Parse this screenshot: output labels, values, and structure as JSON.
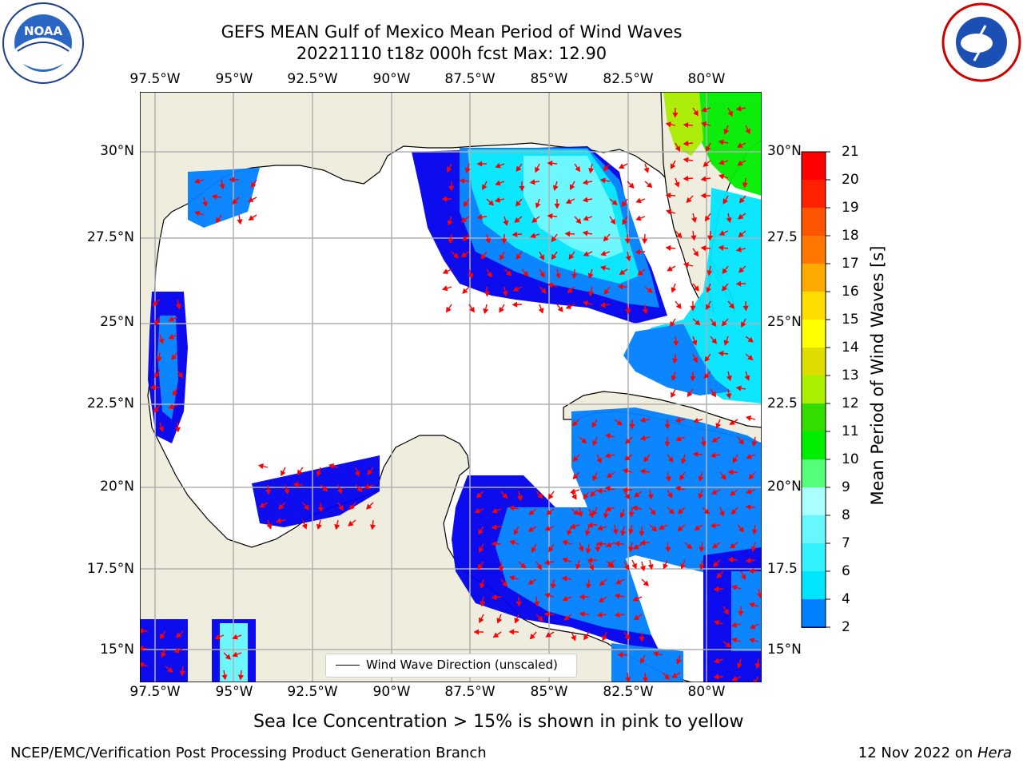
{
  "title": {
    "line1": "GEFS MEAN Gulf of Mexico Mean Period of Wind Waves",
    "line2": "20221110 t18z 000h fcst   Max: 12.90"
  },
  "logos": {
    "left": {
      "name": "NOAA",
      "ring_text": "NATIONAL OCEANIC AND ATMOSPHERIC ADMINISTRATION · U.S. DEPARTMENT OF COMMERCE"
    },
    "right": {
      "name": "NATIONAL WEATHER SERVICE"
    }
  },
  "axes": {
    "lon_ticks": [
      "97.5°W",
      "95°W",
      "92.5°W",
      "90°W",
      "87.5°W",
      "85°W",
      "82.5°W",
      "80°W"
    ],
    "lat_ticks_left": [
      "30°N",
      "27.5°N",
      "25°N",
      "22.5°N",
      "20°N",
      "17.5°N",
      "15°N"
    ],
    "lat_ticks_right": [
      "30°N",
      "27.5",
      "25°N",
      "22.5",
      "20°N",
      "17.5",
      "15°N"
    ]
  },
  "legend": {
    "label": "Wind Wave Direction (unscaled)"
  },
  "colorbar": {
    "label": "Mean Period of Wind Waves [s]",
    "ticks": [
      "2",
      "4",
      "6",
      "7",
      "8",
      "9",
      "10",
      "11",
      "12",
      "13",
      "14",
      "15",
      "16",
      "17",
      "18",
      "19",
      "20",
      "21"
    ],
    "colors": [
      "#0000ee",
      "#0080ff",
      "#00e5ff",
      "#33f2ff",
      "#66f7ff",
      "#aaffff",
      "#55ff77",
      "#00ee00",
      "#33dd00",
      "#aaee00",
      "#dddd00",
      "#ffff00",
      "#ffdd00",
      "#ffaa00",
      "#ff7700",
      "#ff5500",
      "#ff2200",
      "#ff0000"
    ]
  },
  "notes": {
    "ice": "Sea Ice Concentration > 15% is shown in pink to yellow",
    "footer_left": "NCEP/EMC/Verification Post Processing Product Generation Branch",
    "footer_right_date": "12 Nov 2022 on ",
    "footer_right_host": "Hera"
  },
  "colors": {
    "land": "#efedde",
    "ocean": "#ffffff",
    "grid": "#b0b0b0",
    "arrow": "#ff0000"
  }
}
